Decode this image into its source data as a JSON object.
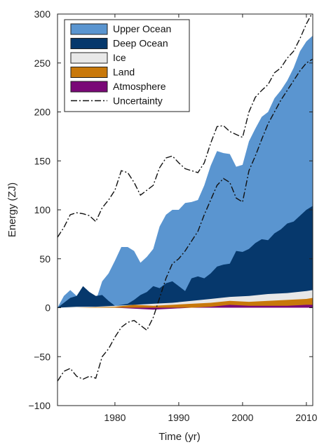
{
  "chart_data": {
    "type": "area",
    "xlabel": "Time (yr)",
    "ylabel": "Energy (ZJ)",
    "xlim": [
      1971,
      2011
    ],
    "ylim": [
      -100,
      300
    ],
    "x_ticks": [
      1980,
      1990,
      2000,
      2010
    ],
    "y_ticks": [
      -100,
      -50,
      0,
      50,
      100,
      150,
      200,
      250,
      300
    ],
    "grid": false,
    "legend_position": "top-left",
    "stack_order": [
      "Atmosphere",
      "Land",
      "Ice",
      "Deep Ocean",
      "Upper Ocean"
    ],
    "series": [
      {
        "name": "Upper Ocean",
        "color": "#5a95d0",
        "x": [
          1971,
          1972,
          1973,
          1974,
          1975,
          1976,
          1977,
          1978,
          1979,
          1980,
          1981,
          1982,
          1983,
          1984,
          1985,
          1986,
          1987,
          1988,
          1989,
          1990,
          1991,
          1992,
          1993,
          1994,
          1995,
          1996,
          1997,
          1998,
          1999,
          2000,
          2001,
          2002,
          2003,
          2004,
          2005,
          2006,
          2007,
          2008,
          2009,
          2010,
          2011
        ],
        "top": [
          0,
          12,
          18,
          12,
          10,
          10,
          7,
          27,
          35,
          48,
          62,
          62,
          58,
          46,
          52,
          60,
          83,
          95,
          100,
          100,
          107,
          108,
          110,
          125,
          145,
          160,
          158,
          157,
          144,
          146,
          170,
          183,
          195,
          200,
          214,
          222,
          232,
          245,
          262,
          272,
          278
        ]
      },
      {
        "name": "Deep Ocean",
        "color": "#06386c",
        "x": [
          1971,
          1972,
          1973,
          1974,
          1975,
          1976,
          1977,
          1978,
          1979,
          1980,
          1981,
          1982,
          1983,
          1984,
          1985,
          1986,
          1987,
          1988,
          1989,
          1990,
          1991,
          1992,
          1993,
          1994,
          1995,
          1996,
          1997,
          1998,
          1999,
          2000,
          2001,
          2002,
          2003,
          2004,
          2005,
          2006,
          2007,
          2008,
          2009,
          2010,
          2011
        ],
        "top": [
          0,
          5,
          10,
          12,
          22,
          16,
          12,
          13,
          7,
          2,
          3,
          4,
          8,
          13,
          16,
          22,
          20,
          25,
          27,
          22,
          17,
          30,
          32,
          30,
          35,
          42,
          44,
          45,
          58,
          57,
          60,
          66,
          70,
          69,
          76,
          80,
          86,
          88,
          94,
          100,
          104
        ]
      },
      {
        "name": "Ice",
        "color": "#e8e8e8",
        "x": [
          1971,
          1974,
          1977,
          1980,
          1983,
          1986,
          1989,
          1992,
          1995,
          1998,
          2001,
          2004,
          2007,
          2010,
          2011
        ],
        "top": [
          0,
          1,
          1,
          2,
          3,
          4,
          5,
          7,
          9,
          11,
          12,
          14,
          15,
          17,
          18
        ]
      },
      {
        "name": "Land",
        "color": "#c8780a",
        "x": [
          1971,
          1974,
          1977,
          1980,
          1983,
          1986,
          1989,
          1992,
          1995,
          1998,
          2001,
          2004,
          2007,
          2010,
          2011
        ],
        "top": [
          0,
          0,
          0.5,
          1,
          3,
          2,
          3,
          4,
          5,
          7,
          6,
          7,
          8,
          9,
          10
        ]
      },
      {
        "name": "Atmosphere",
        "color": "#7a0877",
        "x": [
          1971,
          1974,
          1977,
          1980,
          1983,
          1986,
          1989,
          1992,
          1995,
          1998,
          2001,
          2004,
          2007,
          2010,
          2011
        ],
        "top": [
          0,
          0,
          0,
          0,
          -1,
          -2,
          -1,
          0,
          1,
          3,
          2,
          2,
          2,
          3,
          3
        ]
      }
    ],
    "uncertainty": {
      "name": "Uncertainty",
      "upper": {
        "x": [
          1971,
          1972,
          1973,
          1974,
          1975,
          1976,
          1977,
          1978,
          1979,
          1980,
          1981,
          1982,
          1983,
          1984,
          1985,
          1986,
          1987,
          1988,
          1989,
          1990,
          1991,
          1992,
          1993,
          1994,
          1995,
          1996,
          1997,
          1998,
          1999,
          2000,
          2001,
          2002,
          2003,
          2004,
          2005,
          2006,
          2007,
          2008,
          2009,
          2010,
          2011
        ],
        "y": [
          72,
          82,
          95,
          97,
          96,
          94,
          88,
          102,
          110,
          120,
          140,
          138,
          128,
          115,
          120,
          125,
          143,
          153,
          155,
          148,
          142,
          140,
          138,
          148,
          168,
          185,
          186,
          180,
          177,
          174,
          200,
          215,
          222,
          228,
          240,
          245,
          255,
          262,
          275,
          290,
          302
        ]
      },
      "lower": {
        "x": [
          1971,
          1972,
          1973,
          1974,
          1975,
          1976,
          1977,
          1978,
          1979,
          1980,
          1981,
          1982,
          1983,
          1984,
          1985,
          1986,
          1987,
          1988,
          1989,
          1990,
          1991,
          1992,
          1993,
          1994,
          1995,
          1996,
          1997,
          1998,
          1999,
          2000,
          2001,
          2002,
          2003,
          2004,
          2005,
          2006,
          2007,
          2008,
          2009,
          2010,
          2011
        ],
        "y": [
          -75,
          -65,
          -62,
          -70,
          -73,
          -70,
          -72,
          -50,
          -42,
          -30,
          -20,
          -15,
          -13,
          -18,
          -23,
          -10,
          10,
          30,
          45,
          50,
          58,
          68,
          78,
          95,
          110,
          125,
          132,
          128,
          112,
          108,
          140,
          155,
          172,
          188,
          200,
          212,
          222,
          232,
          242,
          250,
          254
        ]
      }
    },
    "legend": [
      {
        "label": "Upper Ocean",
        "kind": "patch",
        "color": "#5a95d0"
      },
      {
        "label": "Deep Ocean",
        "kind": "patch",
        "color": "#06386c"
      },
      {
        "label": "Ice",
        "kind": "patch",
        "color": "#e8e8e8"
      },
      {
        "label": "Land",
        "kind": "patch",
        "color": "#c8780a"
      },
      {
        "label": "Atmosphere",
        "kind": "patch",
        "color": "#7a0877"
      },
      {
        "label": "Uncertainty",
        "kind": "dashdot",
        "color": "#111111"
      }
    ]
  }
}
